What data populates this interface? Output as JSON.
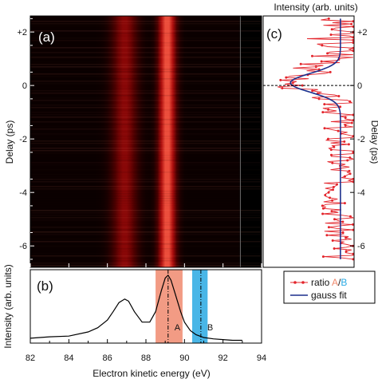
{
  "chart_data": [
    {
      "panel": "(a)",
      "type": "heatmap",
      "ylabel": "Delay (ps)",
      "x_range": [
        82,
        94
      ],
      "y_range": [
        -6.8,
        2.6
      ],
      "y_ticks": [
        "+2",
        "0",
        "-2",
        "-4",
        "-6"
      ],
      "y_tick_values": [
        2,
        0,
        -2,
        -4,
        -6
      ],
      "colormap": [
        "#000000",
        "#5a0000",
        "#c41010",
        "#ff6a50"
      ],
      "bands": [
        {
          "center_eV": 86.9,
          "width_eV": 0.45,
          "intensity": 0.45
        },
        {
          "center_eV": 89.1,
          "width_eV": 0.3,
          "intensity": 0.9
        }
      ],
      "detector_edge_eV": 92.9
    },
    {
      "panel": "(b)",
      "type": "line",
      "xlabel": "Electron kinetic energy (eV)",
      "ylabel": "Intensity (arb. units)",
      "x_ticks": [
        82,
        84,
        86,
        88,
        90,
        92,
        94
      ],
      "xlim": [
        82,
        94
      ],
      "ylim": [
        0,
        1.05
      ],
      "x": [
        82.0,
        83.0,
        84.0,
        85.0,
        85.5,
        86.0,
        86.3,
        86.6,
        86.9,
        87.1,
        87.4,
        87.8,
        88.2,
        88.5,
        88.8,
        89.0,
        89.15,
        89.3,
        89.5,
        89.8,
        90.0,
        90.3,
        90.6,
        91.0,
        91.5,
        92.0,
        92.5,
        93.0
      ],
      "y": [
        0.07,
        0.09,
        0.1,
        0.16,
        0.22,
        0.33,
        0.45,
        0.58,
        0.63,
        0.6,
        0.45,
        0.3,
        0.3,
        0.45,
        0.75,
        0.93,
        0.97,
        0.9,
        0.72,
        0.45,
        0.3,
        0.18,
        0.12,
        0.08,
        0.06,
        0.05,
        0.04,
        0.04
      ],
      "regions": [
        {
          "label": "A",
          "from": 88.5,
          "to": 89.9,
          "color": "#f08a6e",
          "line": 89.15
        },
        {
          "label": "B",
          "from": 90.4,
          "to": 91.2,
          "color": "#29a9e3",
          "line": 90.85
        }
      ]
    },
    {
      "panel": "(c)",
      "type": "line",
      "xlabel": "Intensity (arb. units)",
      "ylabel": "Delay (ps)",
      "y_ticks": [
        "+2",
        "0",
        "-2",
        "-4",
        "-6"
      ],
      "y_tick_values": [
        2,
        0,
        -2,
        -4,
        -6
      ],
      "ylim": [
        -6.8,
        2.6
      ],
      "xlim": [
        0,
        1
      ],
      "gauss_fit": {
        "baseline": 0.85,
        "dip_depth": 0.55,
        "center_ps": 0.1,
        "sigma_ps": 0.35
      },
      "legend": {
        "placement": "bottom-right",
        "ratio_prefix": "ratio ",
        "ratio_a": "A",
        "ratio_sep": "/",
        "ratio_b": "B",
        "gauss": "gauss fit"
      }
    }
  ]
}
